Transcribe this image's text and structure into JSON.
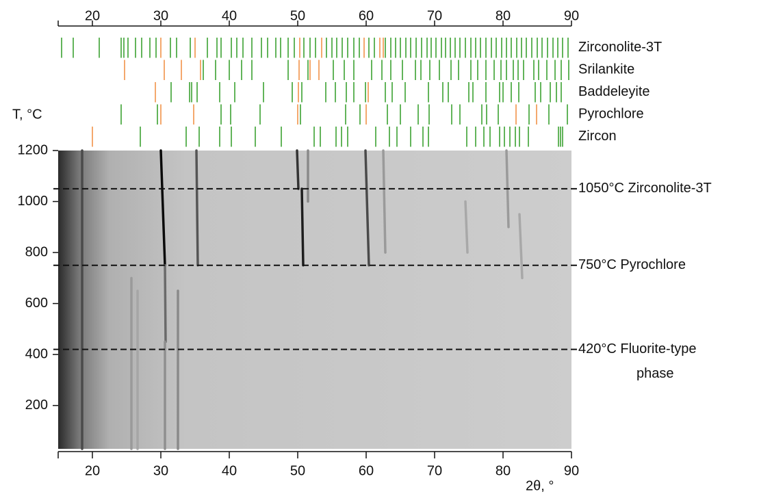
{
  "chart_data": {
    "type": "xrd-heatmap",
    "xlabel": "2θ, °",
    "ylabel": "T, °C",
    "xlim": [
      15,
      90
    ],
    "xticks": [
      20,
      30,
      40,
      50,
      60,
      70,
      80,
      90
    ],
    "ylim": [
      30,
      1200
    ],
    "yticks": [
      200,
      400,
      600,
      800,
      1000,
      1200
    ],
    "phases": [
      {
        "name": "Zirconolite-3T",
        "color": "#2e9a22",
        "peaks": [
          15.5,
          17.2,
          21,
          24.2,
          24.6,
          25.2,
          26.3,
          27.2,
          28.4,
          29.3,
          31.4,
          32.3,
          34.3,
          36.8,
          38.2,
          38.8,
          40.3,
          41.1,
          42.0,
          43.3,
          44.7,
          45.6,
          46.8,
          47.5,
          48.6,
          49.5,
          50.9,
          51.8,
          52.6,
          54.2,
          55.0,
          55.7,
          56.5,
          57.3,
          58.2,
          59.0,
          60.4,
          61.2,
          62.8,
          63.6,
          64.3,
          65.0,
          65.8,
          66.5,
          67.3,
          68.1,
          68.9,
          69.5,
          70.2,
          71.0,
          71.6,
          72.3,
          73.0,
          73.7,
          74.5,
          75.3,
          76.0,
          76.7,
          77.5,
          78.3,
          79.0,
          79.8,
          80.5,
          81.2,
          82.0,
          82.7,
          83.4,
          84.2,
          85.0,
          85.7,
          86.5,
          87.3,
          88.0,
          88.7,
          89.5
        ],
        "strong_color": "#f08a3c",
        "strong_peaks": [
          30.0,
          35.0,
          50.3,
          53.5,
          59.7,
          62.0,
          62.5
        ]
      },
      {
        "name": "Srilankite",
        "color": "#2e9a22",
        "peaks": [
          36.2,
          38.0,
          40.0,
          41.8,
          43.3,
          48.6,
          51.5,
          55.2,
          56.8,
          58.2,
          60.8,
          62.3,
          63.6,
          65.3,
          67.2,
          68.0,
          69.3,
          70.7,
          72.4,
          73.5,
          75.3,
          76.3,
          77.5,
          78.7,
          79.7,
          80.5,
          81.5,
          82.2,
          83.0,
          84.5,
          85.2,
          86.4,
          87.6,
          88.5,
          89.6
        ],
        "strong_color": "#f08a3c",
        "strong_peaks": [
          24.7,
          30.5,
          33.0,
          35.8,
          50.2,
          51.8,
          53.1
        ]
      },
      {
        "name": "Baddeleyite",
        "color": "#2e9a22",
        "peaks": [
          31.5,
          34.2,
          34.5,
          35.3,
          38.6,
          40.8,
          45.0,
          49.2,
          50.6,
          54.1,
          55.5,
          57.1,
          58.2,
          59.9,
          62.8,
          63.8,
          65.7,
          69.1,
          71.2,
          72.0,
          75.0,
          75.6,
          77.5,
          79.5,
          80.0,
          81.2,
          82.3,
          84.7,
          85.5,
          86.9,
          87.8,
          88.5
        ],
        "strong_color": "#f08a3c",
        "strong_peaks": [
          29.2,
          50.1,
          60.3
        ]
      },
      {
        "name": "Pyrochlore",
        "color": "#2e9a22",
        "peaks": [
          24.2,
          29.5,
          38.8,
          40.2,
          44.5,
          50.4,
          57.0,
          59.1,
          63.1,
          65.0,
          67.6,
          69.2,
          72.5,
          73.7,
          76.9,
          77.6,
          79.3,
          83.8,
          86.7,
          89.4
        ],
        "strong_color": "#f08a3c",
        "strong_peaks": [
          30.0,
          34.8,
          50.0,
          60.0,
          81.9,
          84.9
        ]
      },
      {
        "name": "Zircon",
        "color": "#2e9a22",
        "peaks": [
          27.0,
          33.7,
          35.6,
          38.6,
          40.3,
          43.8,
          47.6,
          52.4,
          53.3,
          55.6,
          56.4,
          57.3,
          61.4,
          63.4,
          64.5,
          66.5,
          68.3,
          69.1,
          74.7,
          76.0,
          77.2,
          78.1,
          79.5,
          80.2,
          81.0,
          81.8,
          82.4,
          83.7,
          88.1,
          88.4,
          88.7
        ],
        "strong_color": "#f08a3c",
        "strong_peaks": [
          20.0
        ]
      }
    ],
    "streaks": [
      {
        "x": [
          30.0,
          30.6
        ],
        "t": [
          1200,
          750
        ],
        "color": "#0a0a0a"
      },
      {
        "x": [
          30.6,
          30.7
        ],
        "t": [
          750,
          450
        ],
        "color": "#6a6a6a"
      },
      {
        "x": [
          35.2,
          35.4
        ],
        "t": [
          1200,
          750
        ],
        "color": "#555555"
      },
      {
        "x": [
          49.9,
          50.1
        ],
        "t": [
          1200,
          1050
        ],
        "color": "#333333"
      },
      {
        "x": [
          50.6,
          50.8
        ],
        "t": [
          1050,
          750
        ],
        "color": "#1e1e1e"
      },
      {
        "x": [
          51.5,
          51.5
        ],
        "t": [
          1200,
          1000
        ],
        "color": "#8a8a8a"
      },
      {
        "x": [
          59.9,
          60.4
        ],
        "t": [
          1200,
          750
        ],
        "color": "#4a4a4a"
      },
      {
        "x": [
          62.5,
          62.8
        ],
        "t": [
          1200,
          800
        ],
        "color": "#9a9a9a"
      },
      {
        "x": [
          74.5,
          74.8
        ],
        "t": [
          1000,
          800
        ],
        "color": "#a8a8a8"
      },
      {
        "x": [
          80.5,
          80.8
        ],
        "t": [
          1200,
          900
        ],
        "color": "#9a9a9a"
      },
      {
        "x": [
          82.4,
          82.8
        ],
        "t": [
          950,
          700
        ],
        "color": "#a8a8a8"
      },
      {
        "x": [
          25.7,
          25.7
        ],
        "t": [
          700,
          30
        ],
        "color": "#9a9a9a"
      },
      {
        "x": [
          26.6,
          26.6
        ],
        "t": [
          650,
          30
        ],
        "color": "#a6a6a6"
      },
      {
        "x": [
          30.6,
          30.6
        ],
        "t": [
          450,
          30
        ],
        "color": "#8f8f8f"
      },
      {
        "x": [
          32.5,
          32.5
        ],
        "t": [
          650,
          30
        ],
        "color": "#8a8a8a"
      },
      {
        "x": [
          18.5,
          18.5
        ],
        "t": [
          1200,
          30
        ],
        "color": "#4a4a4a"
      }
    ],
    "annotations": [
      {
        "y": 1050,
        "lines": [
          "1050°C Zirconolite-3T"
        ]
      },
      {
        "y": 750,
        "lines": [
          "750°C Pyrochlore"
        ]
      },
      {
        "y": 420,
        "lines": [
          "420°C Fluorite-type",
          "phase"
        ]
      }
    ]
  }
}
